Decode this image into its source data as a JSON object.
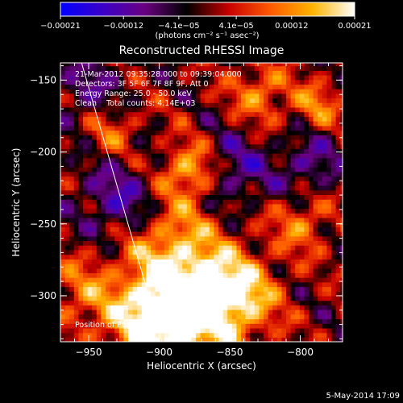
{
  "chart_data": {
    "type": "heatmap",
    "title": "Reconstructed RHESSI Image",
    "xlabel": "Heliocentric X (arcsec)",
    "ylabel": "Heliocentric Y (arcsec)",
    "xlim": [
      -970,
      -770
    ],
    "ylim": [
      -332,
      -138
    ],
    "x_ticks": [
      -950,
      -900,
      -850,
      -800
    ],
    "x_tick_labels": [
      "−950",
      "−900",
      "−850",
      "−800"
    ],
    "y_ticks": [
      -150,
      -200,
      -250,
      -300
    ],
    "y_tick_labels": [
      "−150",
      "−200",
      "−250",
      "−300"
    ],
    "colorbar": {
      "range": [
        -0.00021,
        0.00021
      ],
      "ticks": [
        -0.00021,
        -0.00012,
        -4.1e-05,
        4.1e-05,
        0.00012,
        0.00021
      ],
      "tick_labels": [
        "−0.00021",
        "−0.00012",
        "−4.1e−05",
        "4.1e−05",
        "0.00012",
        "0.00021"
      ],
      "units_label": "(photons cm⁻² s⁻¹ asec⁻²)",
      "colormap": [
        "#0000ff",
        "#3b00c8",
        "#6a0080",
        "#000000",
        "#c80000",
        "#ff5a00",
        "#ffb400",
        "#ffffff"
      ]
    },
    "annotations": [
      "21-Mar-2012 09:35:28.000 to 09:39:04.000",
      "Detectors: 3F 5F 6F 7F 8F 9F, Att 0",
      "Energy Range: 25.0 - 50.0 keV",
      "Clean    Total counts: 4.14E+03"
    ],
    "peak_label": "Position of Peak = [ -873, -303]",
    "peak": [
      -873,
      -303
    ],
    "limb_line": [
      [
        -955,
        -138
      ],
      [
        -898,
        -332
      ]
    ],
    "blobs": [
      {
        "x": -875,
        "y": -305,
        "amp": 1.0,
        "r": 28
      },
      {
        "x": -905,
        "y": -320,
        "amp": 0.85,
        "r": 22
      },
      {
        "x": -880,
        "y": -215,
        "amp": 0.8,
        "r": 14
      },
      {
        "x": -895,
        "y": -265,
        "amp": 0.5,
        "r": 22
      },
      {
        "x": -935,
        "y": -185,
        "amp": 0.45,
        "r": 14
      },
      {
        "x": -830,
        "y": -160,
        "amp": 0.55,
        "r": 14
      },
      {
        "x": -845,
        "y": -300,
        "amp": 0.6,
        "r": 18
      },
      {
        "x": -800,
        "y": -250,
        "amp": 0.5,
        "r": 14
      },
      {
        "x": -790,
        "y": -170,
        "amp": 0.5,
        "r": 12
      },
      {
        "x": -955,
        "y": -300,
        "amp": 0.4,
        "r": 20
      },
      {
        "x": -930,
        "y": -235,
        "amp": -0.55,
        "r": 20
      },
      {
        "x": -850,
        "y": -215,
        "amp": -0.5,
        "r": 18
      },
      {
        "x": -795,
        "y": -210,
        "amp": -0.45,
        "r": 16
      },
      {
        "x": -950,
        "y": -160,
        "amp": -0.4,
        "r": 18
      }
    ]
  },
  "timestamp": "5-May-2014 17:09"
}
